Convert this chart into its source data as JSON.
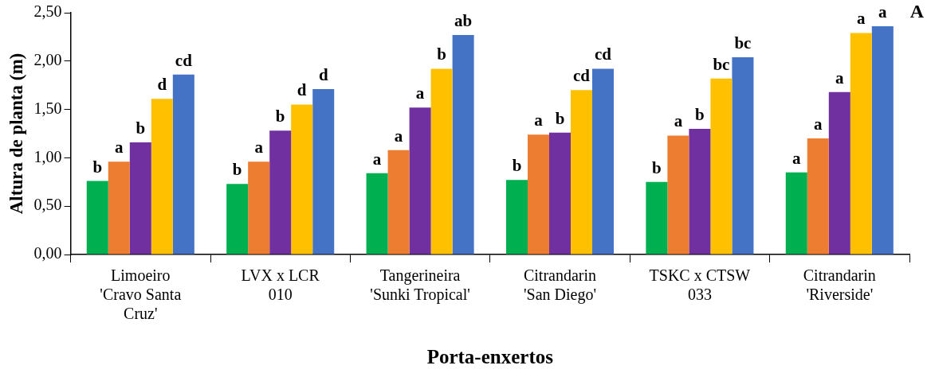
{
  "chart_data": {
    "type": "bar",
    "ylabel": "Altura de planta (m)",
    "xlabel": "Porta-enxertos",
    "categories": [
      "Limoeiro\n'Cravo Santa\nCruz'",
      "LVX x LCR\n010",
      "Tangerineira\n'Sunki Tropical'",
      "Citrandarin\n'San Diego'",
      "TSKC x CTSW\n033",
      "Citrandarin\n'Riverside'"
    ],
    "series": [
      {
        "color": "#00b050",
        "values": [
          0.76,
          0.73,
          0.84,
          0.77,
          0.75,
          0.85
        ],
        "value_labels": [
          "b",
          "b",
          "a",
          "b",
          "b",
          "a"
        ]
      },
      {
        "color": "#ed7d31",
        "values": [
          0.96,
          0.96,
          1.08,
          1.24,
          1.23,
          1.2
        ],
        "value_labels": [
          "a",
          "a",
          "a",
          "a",
          "a",
          "a"
        ]
      },
      {
        "color": "#7030a0",
        "values": [
          1.16,
          1.28,
          1.52,
          1.26,
          1.3,
          1.68
        ],
        "value_labels": [
          "b",
          "b",
          "a",
          "b",
          "b",
          "a"
        ]
      },
      {
        "color": "#ffc000",
        "values": [
          1.61,
          1.55,
          1.92,
          1.7,
          1.82,
          2.29
        ],
        "value_labels": [
          "d",
          "d",
          "b",
          "cd",
          "bc",
          "a"
        ]
      },
      {
        "color": "#4472c4",
        "values": [
          1.86,
          1.71,
          2.27,
          1.92,
          2.04,
          2.36
        ],
        "value_labels": [
          "cd",
          "d",
          "ab",
          "cd",
          "bc",
          "a"
        ]
      }
    ],
    "ylim": [
      0,
      2.5
    ],
    "yticks": [
      {
        "value": 0,
        "label": "0,00"
      },
      {
        "value": 0.5,
        "label": "0,50"
      },
      {
        "value": 1,
        "label": "1,00"
      },
      {
        "value": 1.5,
        "label": "1,50"
      },
      {
        "value": 2,
        "label": "2,00"
      },
      {
        "value": 2.5,
        "label": "2,50"
      }
    ],
    "grid": false,
    "legend": false,
    "annotations": [
      "A"
    ]
  }
}
